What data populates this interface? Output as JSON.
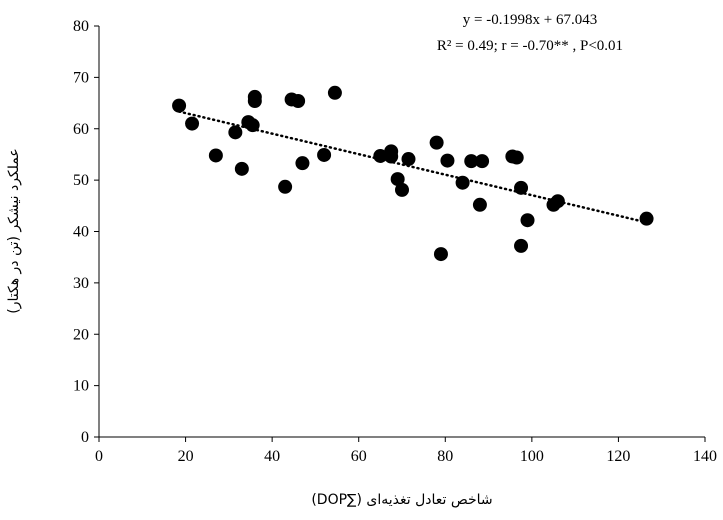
{
  "chart_data": {
    "type": "scatter",
    "title": "",
    "xlabel": "شاخص تعادل تغذیه‌ای (∑DOP)",
    "ylabel": "عملکرد نیشکر (تن در هکتار)",
    "xlim": [
      0,
      140
    ],
    "ylim": [
      0,
      80
    ],
    "xticks": [
      "0",
      "20",
      "40",
      "60",
      "80",
      "100",
      "120",
      "140"
    ],
    "yticks": [
      "0",
      "10",
      "20",
      "30",
      "40",
      "50",
      "60",
      "70",
      "80"
    ],
    "grid": false,
    "legend": "none",
    "marker_color": "#000000",
    "series": [
      {
        "points": [
          [
            18.5,
            64.5
          ],
          [
            21.5,
            61.0
          ],
          [
            27.0,
            54.8
          ],
          [
            31.5,
            59.3
          ],
          [
            33.0,
            52.2
          ],
          [
            34.5,
            61.3
          ],
          [
            35.5,
            60.7
          ],
          [
            36.0,
            66.2
          ],
          [
            36.0,
            65.4
          ],
          [
            43.0,
            48.7
          ],
          [
            44.5,
            65.7
          ],
          [
            46.0,
            65.4
          ],
          [
            47.0,
            53.3
          ],
          [
            52.0,
            54.9
          ],
          [
            54.5,
            67.0
          ],
          [
            65.0,
            54.7
          ],
          [
            67.5,
            55.6
          ],
          [
            67.5,
            54.6
          ],
          [
            69.0,
            50.2
          ],
          [
            70.0,
            48.1
          ],
          [
            71.5,
            54.1
          ],
          [
            78.0,
            57.3
          ],
          [
            79.0,
            35.6
          ],
          [
            80.5,
            53.8
          ],
          [
            84.0,
            49.5
          ],
          [
            86.0,
            53.7
          ],
          [
            88.0,
            45.2
          ],
          [
            88.5,
            53.7
          ],
          [
            95.5,
            54.6
          ],
          [
            96.5,
            54.4
          ],
          [
            97.5,
            48.5
          ],
          [
            97.5,
            37.2
          ],
          [
            99.0,
            42.2
          ],
          [
            105.0,
            45.2
          ],
          [
            106.0,
            45.9
          ],
          [
            126.5,
            42.5
          ]
        ]
      }
    ],
    "trendline": {
      "style": "dotted",
      "slope": -0.1998,
      "intercept": 67.043,
      "x_range": [
        18.5,
        126.5
      ]
    },
    "annotations": {
      "equation": "y = -0.1998x + 67.043",
      "stats": "R² = 0.49; r = -0.70** , P<0.01"
    }
  }
}
